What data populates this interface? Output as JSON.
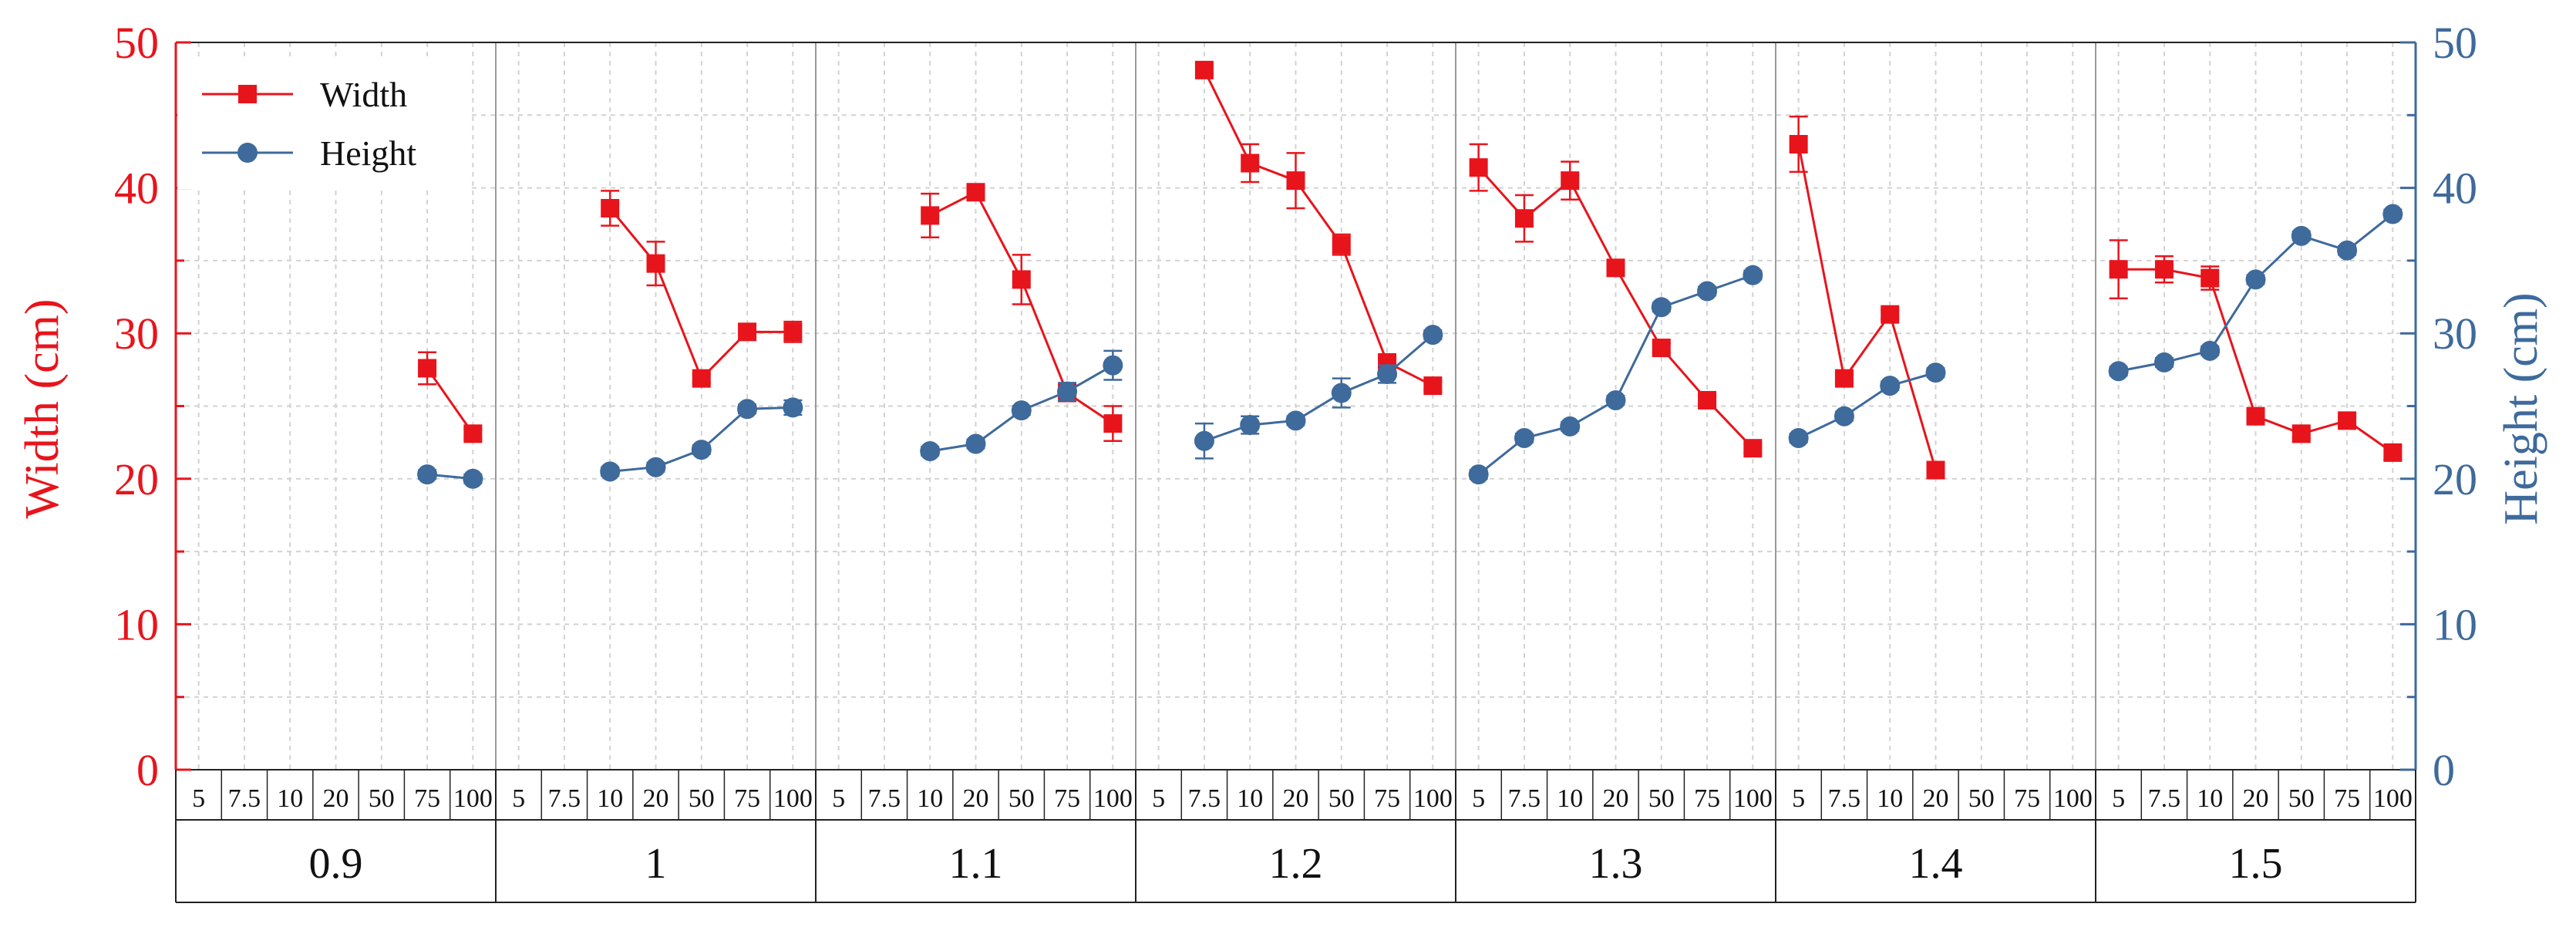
{
  "chart_data": {
    "type": "line",
    "xlabel": "",
    "ylabel": "Width (cm)",
    "y2label": "Height (cm)",
    "ylim": [
      0,
      50
    ],
    "y2lim": [
      0,
      50
    ],
    "yticks": [
      0,
      10,
      20,
      30,
      40,
      50
    ],
    "legend": "top-left",
    "groups": [
      "0.9",
      "1",
      "1.1",
      "1.2",
      "1.3",
      "1.4",
      "1.5"
    ],
    "subcategories": [
      "5",
      "7.5",
      "10",
      "20",
      "50",
      "75",
      "100"
    ],
    "colors": {
      "width": "#e8141c",
      "height": "#3e6a9c",
      "grid": "#d2d2d2",
      "axis": "#222222"
    },
    "series": [
      {
        "name": "Width",
        "axis": "left",
        "marker": "square",
        "values": [
          [
            null,
            null,
            null,
            null,
            null,
            27.6,
            23.1
          ],
          [
            null,
            null,
            38.6,
            34.8,
            26.9,
            30.1,
            30.1
          ],
          [
            null,
            null,
            38.1,
            39.7,
            33.7,
            25.9,
            23.8
          ],
          [
            null,
            48.1,
            41.7,
            40.5,
            36.1,
            28.0,
            26.4
          ],
          [
            41.4,
            37.9,
            40.5,
            34.5,
            29.0,
            25.4,
            22.1
          ],
          [
            43.0,
            26.9,
            31.3,
            20.6,
            null,
            null,
            null
          ],
          [
            34.4,
            34.4,
            33.8,
            24.3,
            23.1,
            24.0,
            21.8
          ]
        ],
        "errors": [
          [
            null,
            null,
            null,
            null,
            null,
            1.1,
            0.3
          ],
          [
            null,
            null,
            1.2,
            1.5,
            0.3,
            0.5,
            0.7
          ],
          [
            null,
            null,
            1.5,
            0.3,
            1.7,
            0.5,
            1.2
          ],
          [
            null,
            0.3,
            1.3,
            1.9,
            0.7,
            0.3,
            0.3
          ],
          [
            1.6,
            1.6,
            1.3,
            0.3,
            0.3,
            0.3,
            0.3
          ],
          [
            1.9,
            0.3,
            0.3,
            0.3,
            null,
            null,
            null
          ],
          [
            2.0,
            0.9,
            0.8,
            0.3,
            0.3,
            0.3,
            0.5
          ]
        ]
      },
      {
        "name": "Height",
        "axis": "right",
        "marker": "circle",
        "values": [
          [
            null,
            null,
            null,
            null,
            null,
            20.3,
            20.0
          ],
          [
            null,
            null,
            20.5,
            20.8,
            22.0,
            24.8,
            24.9
          ],
          [
            null,
            null,
            21.9,
            22.4,
            24.7,
            26.0,
            27.8
          ],
          [
            null,
            22.6,
            23.7,
            24.0,
            25.9,
            27.2,
            29.9
          ],
          [
            20.3,
            22.8,
            23.6,
            25.4,
            31.8,
            32.9,
            34.0
          ],
          [
            22.8,
            24.3,
            26.4,
            27.3,
            null,
            null,
            null
          ],
          [
            27.4,
            28.0,
            28.8,
            33.7,
            36.7,
            35.7,
            38.2
          ]
        ],
        "errors": [
          [
            null,
            null,
            null,
            null,
            null,
            0.3,
            0.3
          ],
          [
            null,
            null,
            0.3,
            0.3,
            0.3,
            0.3,
            0.5
          ],
          [
            null,
            null,
            0.3,
            0.3,
            0.3,
            0.6,
            1.0
          ],
          [
            null,
            1.2,
            0.6,
            0.3,
            1.0,
            0.6,
            0.3
          ],
          [
            0.3,
            0.3,
            0.3,
            0.3,
            0.3,
            0.3,
            0.3
          ],
          [
            0.3,
            0.3,
            0.3,
            0.3,
            null,
            null,
            null
          ],
          [
            0.3,
            0.3,
            0.3,
            0.3,
            0.3,
            0.3,
            0.3
          ]
        ]
      }
    ]
  }
}
